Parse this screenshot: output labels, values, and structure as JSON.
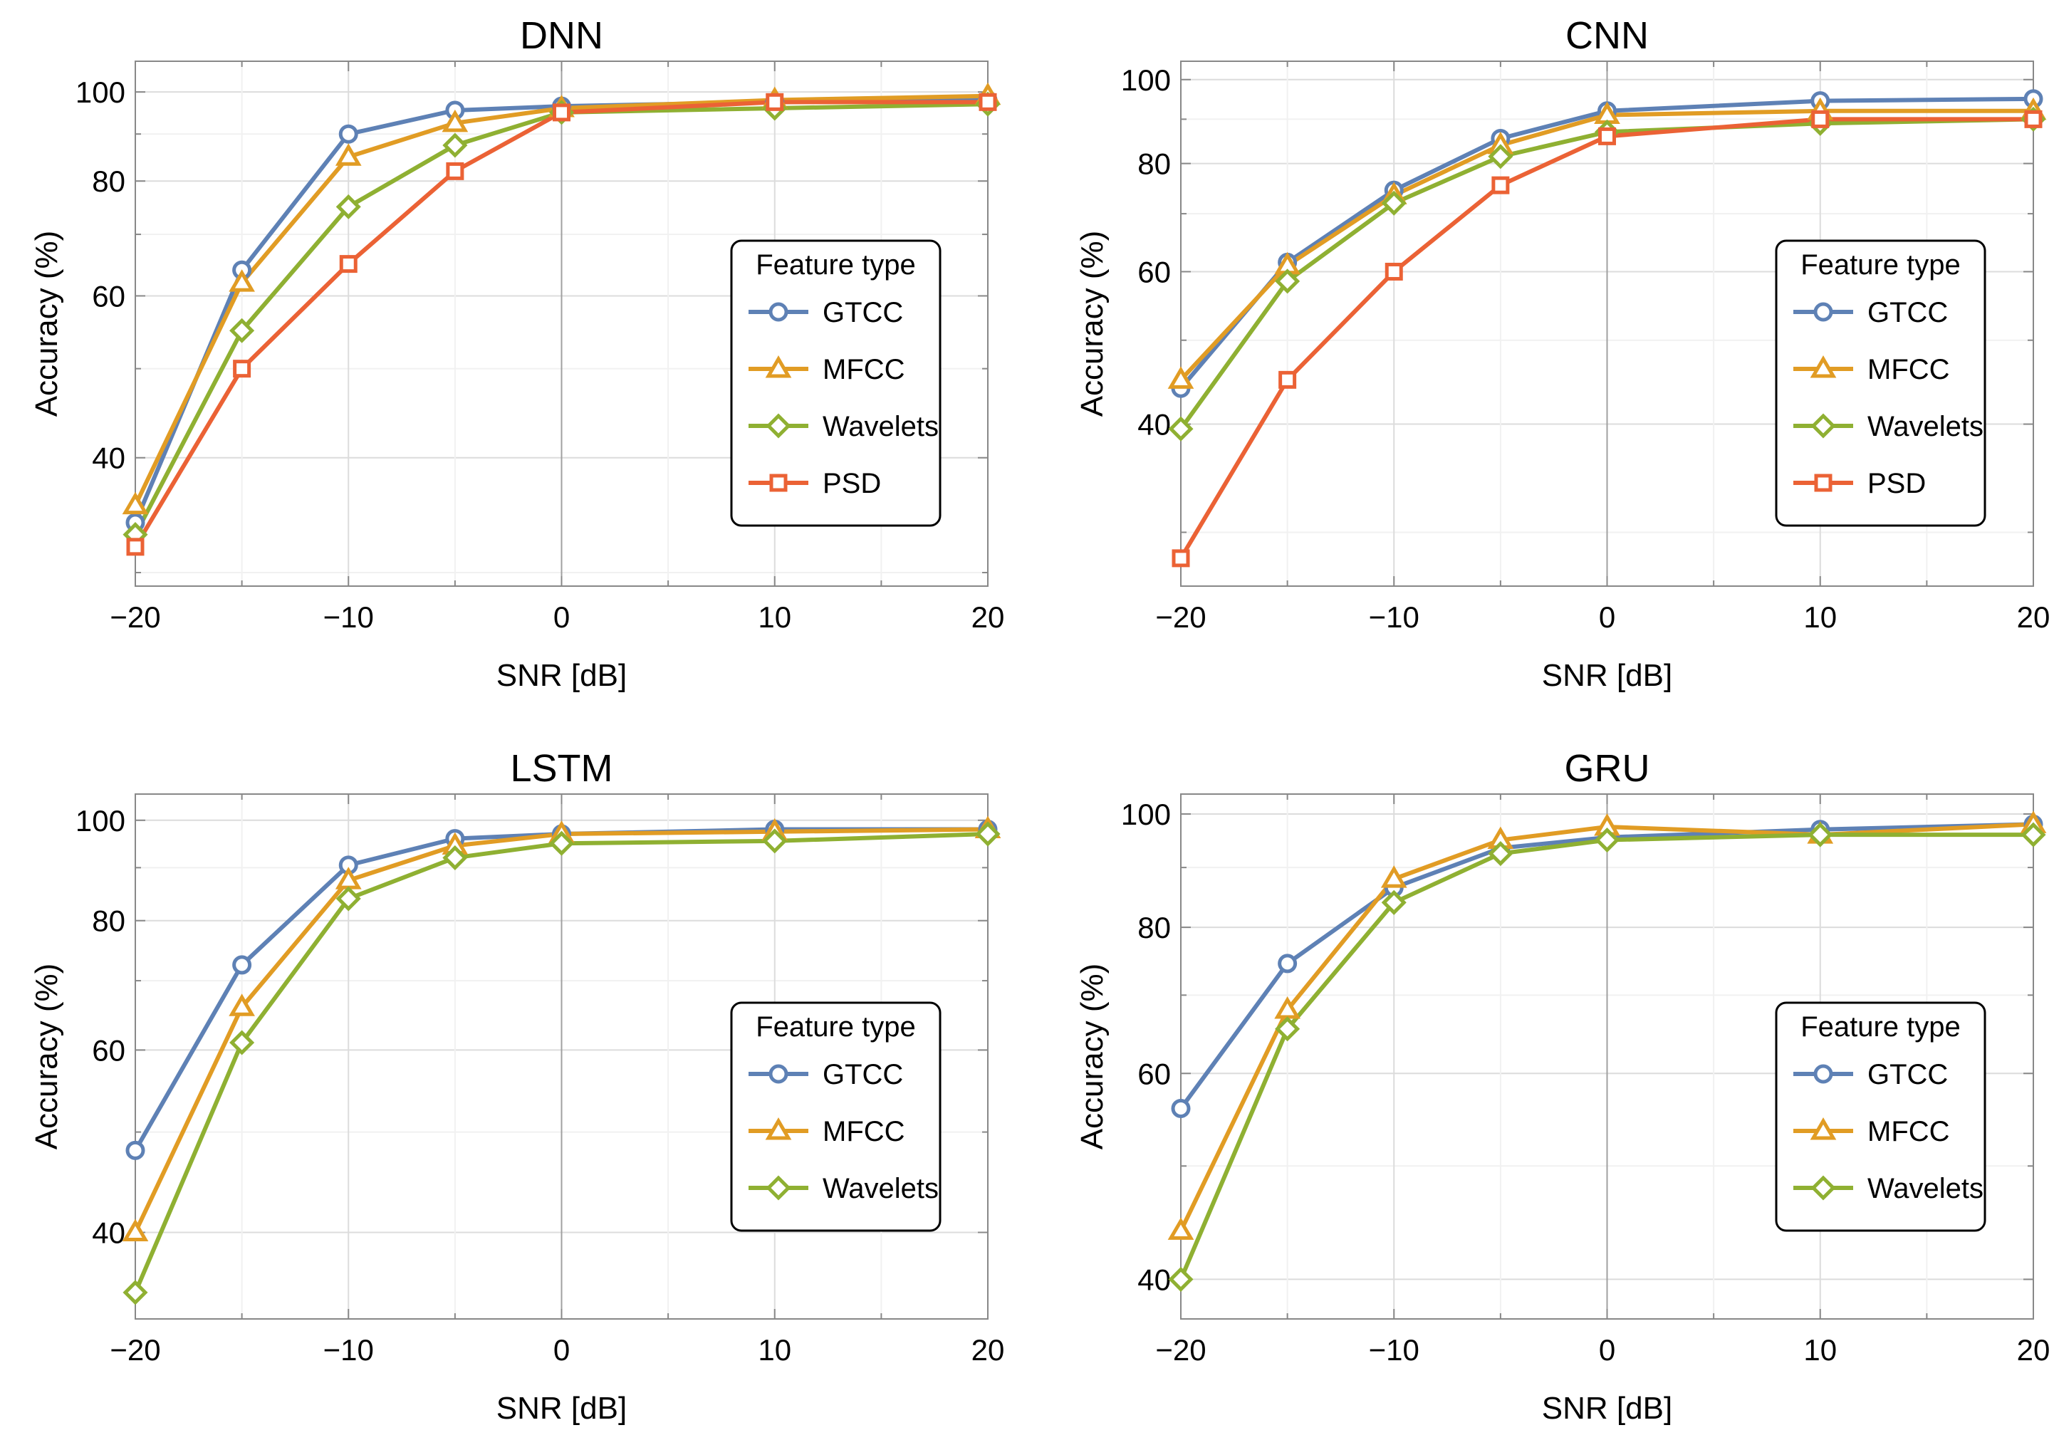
{
  "colors": {
    "GTCC": "#5e81b5",
    "MFCC": "#e19c24",
    "Wavelets": "#8fb032",
    "PSD": "#eb6235"
  },
  "markers": {
    "GTCC": "circle",
    "MFCC": "triangle",
    "Wavelets": "diamond",
    "PSD": "square"
  },
  "chart_data": [
    {
      "type": "line",
      "title": "DNN",
      "xlabel": "SNR [dB]",
      "ylabel": "Accuracy (%)",
      "x": [
        -20,
        -15,
        -10,
        -5,
        0,
        10,
        20
      ],
      "xlim": [
        -20,
        20
      ],
      "ylim": [
        29,
        108
      ],
      "yscale": "log",
      "xticks": [
        -20,
        -10,
        0,
        10,
        20
      ],
      "xtick_labels": [
        "−20",
        "−10",
        "0",
        "10",
        "20"
      ],
      "yticks": [
        40,
        60,
        80,
        100
      ],
      "ytick_labels": [
        "40",
        "60",
        "80",
        "100"
      ],
      "legend_title": "Feature type",
      "legend_position": "right",
      "series": [
        {
          "name": "GTCC",
          "values": [
            34,
            64,
            90,
            95.5,
            96.5,
            97.5,
            98
          ]
        },
        {
          "name": "MFCC",
          "values": [
            35.5,
            62,
            85,
            92.5,
            96,
            98,
            99
          ]
        },
        {
          "name": "Wavelets",
          "values": [
            33,
            55,
            75,
            87.5,
            95,
            96,
            97
          ]
        },
        {
          "name": "PSD",
          "values": [
            32,
            50,
            65,
            82,
            95,
            97.5,
            97.5
          ]
        }
      ]
    },
    {
      "type": "line",
      "title": "CNN",
      "xlabel": "SNR [dB]",
      "ylabel": "Accuracy (%)",
      "x": [
        -20,
        -15,
        -10,
        -5,
        0,
        10,
        20
      ],
      "xlim": [
        -20,
        20
      ],
      "ylim": [
        26,
        105
      ],
      "yscale": "log",
      "xticks": [
        -20,
        -10,
        0,
        10,
        20
      ],
      "xtick_labels": [
        "−20",
        "−10",
        "0",
        "10",
        "20"
      ],
      "yticks": [
        40,
        60,
        80,
        100
      ],
      "ytick_labels": [
        "40",
        "60",
        "80",
        "100"
      ],
      "legend_title": "Feature type",
      "legend_position": "right",
      "series": [
        {
          "name": "GTCC",
          "values": [
            44,
            61.5,
            74.5,
            85.5,
            92,
            94.5,
            95
          ]
        },
        {
          "name": "MFCC",
          "values": [
            45,
            61,
            73.5,
            84,
            91,
            92,
            92
          ]
        },
        {
          "name": "Wavelets",
          "values": [
            39.5,
            58.5,
            72,
            81.5,
            87,
            89,
            90
          ]
        },
        {
          "name": "PSD",
          "values": [
            28,
            45,
            60,
            75.5,
            86,
            90,
            90
          ]
        }
      ]
    },
    {
      "type": "line",
      "title": "LSTM",
      "xlabel": "SNR [dB]",
      "ylabel": "Accuracy (%)",
      "x": [
        -20,
        -15,
        -10,
        -5,
        0,
        10,
        20
      ],
      "xlim": [
        -20,
        20
      ],
      "ylim": [
        33,
        106
      ],
      "yscale": "log",
      "xticks": [
        -20,
        -10,
        0,
        10,
        20
      ],
      "xtick_labels": [
        "−20",
        "−10",
        "0",
        "10",
        "20"
      ],
      "yticks": [
        40,
        60,
        80,
        100
      ],
      "ytick_labels": [
        "40",
        "60",
        "80",
        "100"
      ],
      "legend_title": "Feature type",
      "legend_position": "right",
      "series": [
        {
          "name": "GTCC",
          "values": [
            48,
            72.5,
            90.5,
            96,
            97,
            98,
            98
          ]
        },
        {
          "name": "MFCC",
          "values": [
            40,
            66,
            87.5,
            94.5,
            97,
            97.5,
            98
          ]
        },
        {
          "name": "Wavelets",
          "values": [
            35,
            61,
            84,
            92,
            95,
            95.5,
            97
          ]
        }
      ]
    },
    {
      "type": "line",
      "title": "GRU",
      "xlabel": "SNR [dB]",
      "ylabel": "Accuracy (%)",
      "x": [
        -20,
        -15,
        -10,
        -5,
        0,
        10,
        20
      ],
      "xlim": [
        -20,
        20
      ],
      "ylim": [
        37,
        104
      ],
      "yscale": "log",
      "xticks": [
        -20,
        -10,
        0,
        10,
        20
      ],
      "xtick_labels": [
        "−20",
        "−10",
        "0",
        "10",
        "20"
      ],
      "yticks": [
        40,
        60,
        80,
        100
      ],
      "ytick_labels": [
        "40",
        "60",
        "80",
        "100"
      ],
      "legend_title": "Feature type",
      "legend_position": "right",
      "series": [
        {
          "name": "GTCC",
          "values": [
            56,
            74.5,
            86.5,
            93.5,
            95.5,
            97,
            98
          ]
        },
        {
          "name": "MFCC",
          "values": [
            44,
            68,
            88,
            95,
            97.5,
            96,
            98
          ]
        },
        {
          "name": "Wavelets",
          "values": [
            40,
            65.5,
            84,
            92.5,
            95,
            96,
            96
          ]
        }
      ]
    }
  ]
}
